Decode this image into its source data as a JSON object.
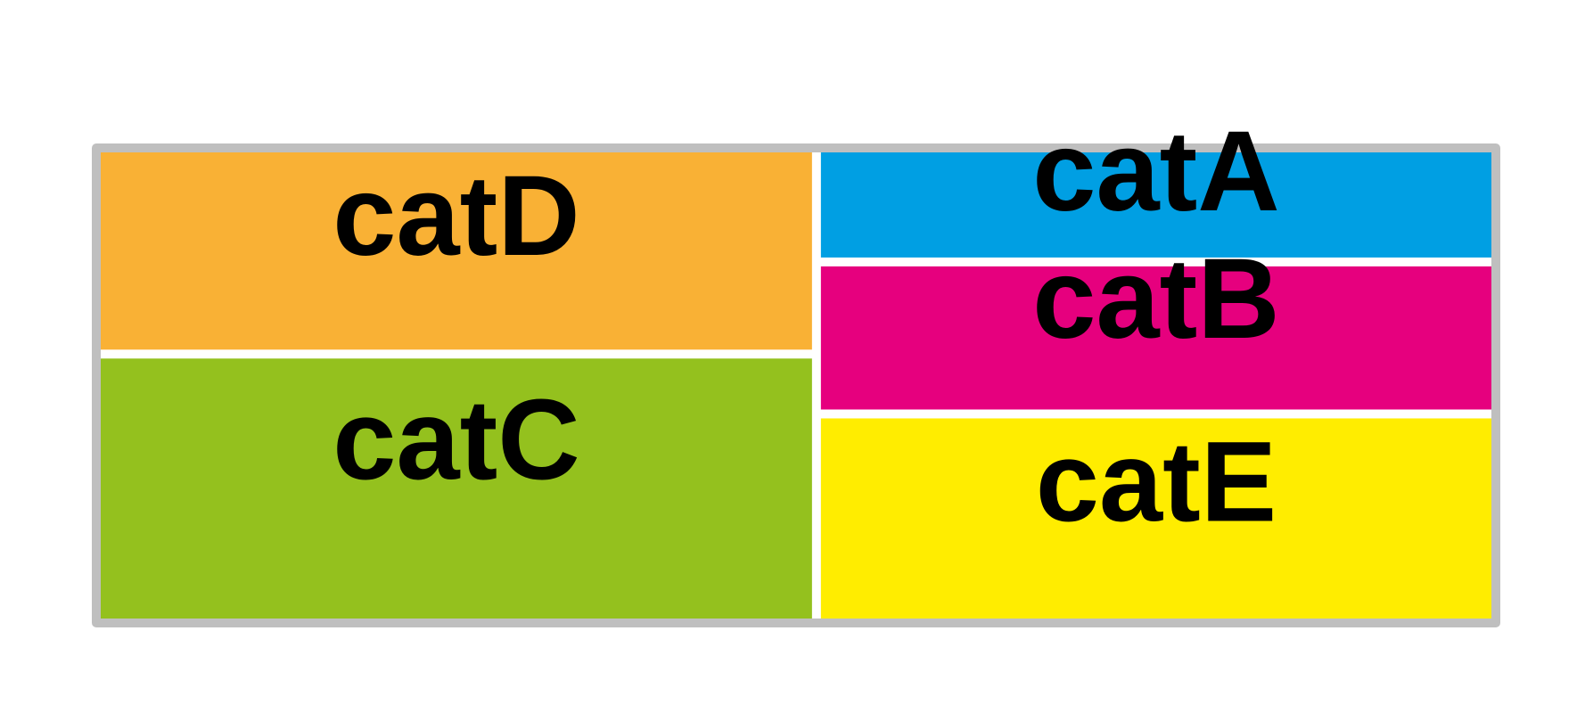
{
  "chart_data": {
    "type": "treemap",
    "items": [
      {
        "label": "catD",
        "value": 23,
        "color": "#f9b135"
      },
      {
        "label": "catC",
        "value": 30,
        "color": "#94c11e"
      },
      {
        "label": "catA",
        "value": 12,
        "color": "#009fe3"
      },
      {
        "label": "catB",
        "value": 16,
        "color": "#e6007e"
      },
      {
        "label": "catE",
        "value": 22,
        "color": "#ffed00"
      }
    ],
    "border_color": "#bfbfbf"
  }
}
